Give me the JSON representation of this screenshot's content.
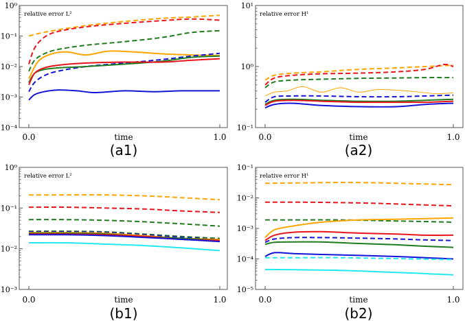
{
  "colors": {
    "orange": "#FFA500",
    "red": "#E8141A",
    "green": "#1E7B1E",
    "blue": "#1414D8",
    "cyan": "#22E8F0"
  },
  "chart_data": [
    {
      "type": "line",
      "panel_label": "(a1)",
      "title": "relative error L²",
      "xlabel": "time",
      "yscale": "log",
      "ylim_exp": [
        -4,
        0
      ],
      "ytick_labels": [
        "10⁻⁴",
        "10⁻³",
        "10⁻²",
        "10⁻¹",
        "10⁰"
      ],
      "xtick_labels": [
        "0.0",
        "1.0"
      ],
      "xlim": [
        0,
        1
      ],
      "series": [
        {
          "color": "orange",
          "dash": true,
          "width": 2,
          "x": [
            0,
            0.1,
            0.3,
            0.5,
            0.7,
            0.85,
            1.0
          ],
          "y": [
            0.1,
            0.14,
            0.22,
            0.3,
            0.38,
            0.42,
            0.48
          ]
        },
        {
          "color": "red",
          "dash": true,
          "width": 2,
          "x": [
            0,
            0.03,
            0.08,
            0.15,
            0.3,
            0.5,
            0.7,
            0.85,
            1.0
          ],
          "y": [
            0.012,
            0.04,
            0.09,
            0.14,
            0.2,
            0.26,
            0.32,
            0.36,
            0.33
          ]
        },
        {
          "color": "green",
          "dash": true,
          "width": 2,
          "x": [
            0,
            0.03,
            0.08,
            0.15,
            0.3,
            0.5,
            0.7,
            0.85,
            1.0
          ],
          "y": [
            0.007,
            0.016,
            0.026,
            0.036,
            0.05,
            0.065,
            0.09,
            0.13,
            0.15
          ]
        },
        {
          "color": "orange",
          "dash": false,
          "width": 2,
          "x": [
            0,
            0.05,
            0.12,
            0.2,
            0.3,
            0.42,
            0.55,
            0.7,
            0.85,
            1.0
          ],
          "y": [
            0.004,
            0.015,
            0.026,
            0.03,
            0.024,
            0.032,
            0.03,
            0.026,
            0.024,
            0.023
          ]
        },
        {
          "color": "blue",
          "dash": true,
          "width": 2,
          "x": [
            0,
            0.03,
            0.08,
            0.15,
            0.3,
            0.5,
            0.7,
            0.85,
            1.0
          ],
          "y": [
            0.0015,
            0.003,
            0.005,
            0.007,
            0.01,
            0.013,
            0.017,
            0.022,
            0.027
          ]
        },
        {
          "color": "green",
          "dash": false,
          "width": 2,
          "x": [
            0,
            0.03,
            0.08,
            0.15,
            0.3,
            0.5,
            0.7,
            0.85,
            1.0
          ],
          "y": [
            0.003,
            0.006,
            0.008,
            0.009,
            0.01,
            0.012,
            0.015,
            0.02,
            0.022
          ]
        },
        {
          "color": "red",
          "dash": false,
          "width": 2,
          "x": [
            0,
            0.03,
            0.08,
            0.15,
            0.3,
            0.5,
            0.7,
            0.85,
            1.0
          ],
          "y": [
            0.0025,
            0.006,
            0.009,
            0.011,
            0.013,
            0.014,
            0.014,
            0.016,
            0.018
          ]
        },
        {
          "color": "blue",
          "dash": false,
          "width": 2,
          "x": [
            0,
            0.03,
            0.08,
            0.15,
            0.25,
            0.35,
            0.5,
            0.65,
            0.8,
            1.0
          ],
          "y": [
            0.0008,
            0.0012,
            0.0015,
            0.0017,
            0.0016,
            0.0014,
            0.0016,
            0.0015,
            0.0016,
            0.0016
          ]
        }
      ]
    },
    {
      "type": "line",
      "panel_label": "(a2)",
      "title": "relative error H¹",
      "xlabel": "time",
      "yscale": "log",
      "ylim_exp": [
        -1,
        1
      ],
      "ytick_labels": [
        "10⁻¹",
        "10⁰",
        "10¹"
      ],
      "xtick_labels": [
        "0.0",
        "1.0"
      ],
      "xlim": [
        0,
        1
      ],
      "series": [
        {
          "color": "orange",
          "dash": true,
          "width": 2,
          "x": [
            0,
            0.05,
            0.15,
            0.3,
            0.5,
            0.7,
            0.85,
            1.0
          ],
          "y": [
            0.6,
            0.72,
            0.78,
            0.82,
            0.9,
            0.95,
            1.0,
            1.05
          ]
        },
        {
          "color": "red",
          "dash": true,
          "width": 2,
          "x": [
            0,
            0.05,
            0.15,
            0.3,
            0.5,
            0.7,
            0.85,
            0.95,
            1.0
          ],
          "y": [
            0.5,
            0.65,
            0.72,
            0.76,
            0.78,
            0.82,
            0.9,
            1.08,
            1.0
          ]
        },
        {
          "color": "green",
          "dash": true,
          "width": 2,
          "x": [
            0,
            0.05,
            0.15,
            0.3,
            0.5,
            0.7,
            0.85,
            1.0
          ],
          "y": [
            0.45,
            0.56,
            0.6,
            0.62,
            0.64,
            0.65,
            0.66,
            0.66
          ]
        },
        {
          "color": "orange",
          "dash": false,
          "width": 1,
          "x": [
            0,
            0.05,
            0.12,
            0.2,
            0.3,
            0.4,
            0.5,
            0.6,
            0.75,
            0.9,
            1.0
          ],
          "y": [
            0.33,
            0.38,
            0.4,
            0.47,
            0.38,
            0.45,
            0.38,
            0.42,
            0.4,
            0.36,
            0.37
          ]
        },
        {
          "color": "blue",
          "dash": true,
          "width": 2,
          "x": [
            0,
            0.05,
            0.15,
            0.3,
            0.5,
            0.7,
            0.85,
            1.0
          ],
          "y": [
            0.26,
            0.32,
            0.33,
            0.33,
            0.32,
            0.32,
            0.33,
            0.34
          ]
        },
        {
          "color": "green",
          "dash": false,
          "width": 2,
          "x": [
            0,
            0.05,
            0.15,
            0.3,
            0.5,
            0.7,
            0.85,
            1.0
          ],
          "y": [
            0.24,
            0.28,
            0.29,
            0.28,
            0.27,
            0.27,
            0.28,
            0.29
          ]
        },
        {
          "color": "red",
          "dash": false,
          "width": 2,
          "x": [
            0,
            0.05,
            0.15,
            0.3,
            0.5,
            0.7,
            0.85,
            1.0
          ],
          "y": [
            0.23,
            0.27,
            0.28,
            0.27,
            0.26,
            0.26,
            0.26,
            0.27
          ]
        },
        {
          "color": "blue",
          "dash": false,
          "width": 2,
          "x": [
            0,
            0.05,
            0.15,
            0.3,
            0.5,
            0.7,
            0.85,
            1.0
          ],
          "y": [
            0.21,
            0.24,
            0.25,
            0.23,
            0.22,
            0.22,
            0.24,
            0.25
          ]
        }
      ]
    },
    {
      "type": "line",
      "panel_label": "(b1)",
      "title": "relative error L²",
      "xlabel": "time",
      "yscale": "log",
      "ylim_exp": [
        -3,
        0
      ],
      "ytick_labels": [
        "10⁻³",
        "10⁻²",
        "10⁻¹",
        "10⁰"
      ],
      "xtick_labels": [
        "0.0",
        "1.0"
      ],
      "xlim": [
        0,
        1
      ],
      "series": [
        {
          "color": "orange",
          "dash": true,
          "width": 2,
          "x": [
            0,
            0.2,
            0.4,
            0.6,
            0.8,
            1.0
          ],
          "y": [
            0.21,
            0.21,
            0.21,
            0.2,
            0.18,
            0.16
          ]
        },
        {
          "color": "red",
          "dash": true,
          "width": 2,
          "x": [
            0,
            0.2,
            0.4,
            0.6,
            0.8,
            1.0
          ],
          "y": [
            0.105,
            0.105,
            0.1,
            0.095,
            0.085,
            0.078
          ]
        },
        {
          "color": "green",
          "dash": true,
          "width": 2,
          "x": [
            0,
            0.2,
            0.4,
            0.6,
            0.8,
            1.0
          ],
          "y": [
            0.052,
            0.052,
            0.05,
            0.046,
            0.041,
            0.036
          ]
        },
        {
          "color": "green",
          "dash": true,
          "width": 2,
          "x": [
            0,
            0.2,
            0.4,
            0.6,
            0.8,
            1.0
          ],
          "y": [
            0.027,
            0.027,
            0.026,
            0.023,
            0.02,
            0.018
          ]
        },
        {
          "color": "blue",
          "dash": true,
          "width": 2,
          "x": [
            0,
            0.2,
            0.4,
            0.6,
            0.8,
            1.0
          ],
          "y": [
            0.026,
            0.026,
            0.025,
            0.022,
            0.019,
            0.017
          ]
        },
        {
          "color": "orange",
          "dash": false,
          "width": 2,
          "x": [
            0,
            0.2,
            0.4,
            0.6,
            0.8,
            1.0
          ],
          "y": [
            0.025,
            0.025,
            0.024,
            0.021,
            0.018,
            0.017
          ]
        },
        {
          "color": "green",
          "dash": false,
          "width": 2,
          "x": [
            0,
            0.2,
            0.4,
            0.6,
            0.8,
            1.0
          ],
          "y": [
            0.024,
            0.024,
            0.023,
            0.02,
            0.018,
            0.016
          ]
        },
        {
          "color": "red",
          "dash": false,
          "width": 2,
          "x": [
            0,
            0.2,
            0.4,
            0.6,
            0.8,
            1.0
          ],
          "y": [
            0.023,
            0.023,
            0.022,
            0.02,
            0.017,
            0.016
          ]
        },
        {
          "color": "blue",
          "dash": false,
          "width": 2,
          "x": [
            0,
            0.2,
            0.4,
            0.6,
            0.8,
            1.0
          ],
          "y": [
            0.022,
            0.022,
            0.021,
            0.019,
            0.017,
            0.015
          ]
        },
        {
          "color": "cyan",
          "dash": false,
          "width": 2,
          "x": [
            0,
            0.2,
            0.4,
            0.6,
            0.8,
            1.0
          ],
          "y": [
            0.014,
            0.014,
            0.013,
            0.012,
            0.0105,
            0.009
          ]
        }
      ]
    },
    {
      "type": "line",
      "panel_label": "(b2)",
      "title": "relative error H¹",
      "xlabel": "time",
      "yscale": "log",
      "ylim_exp": [
        -5,
        -1
      ],
      "ytick_labels": [
        "10⁻⁵",
        "10⁻⁴",
        "10⁻³",
        "10⁻²",
        "10⁻¹"
      ],
      "xtick_labels": [
        "0.0",
        "1.0"
      ],
      "xlim": [
        0,
        1
      ],
      "series": [
        {
          "color": "orange",
          "dash": true,
          "width": 2,
          "x": [
            0,
            0.2,
            0.4,
            0.6,
            0.8,
            1.0
          ],
          "y": [
            0.03,
            0.031,
            0.032,
            0.031,
            0.029,
            0.027
          ]
        },
        {
          "color": "red",
          "dash": true,
          "width": 2,
          "x": [
            0,
            0.2,
            0.4,
            0.6,
            0.8,
            1.0
          ],
          "y": [
            0.0072,
            0.0072,
            0.007,
            0.0066,
            0.006,
            0.0055
          ]
        },
        {
          "color": "green",
          "dash": true,
          "width": 2,
          "x": [
            0,
            0.2,
            0.4,
            0.6,
            0.8,
            1.0
          ],
          "y": [
            0.0019,
            0.0019,
            0.0019,
            0.0018,
            0.0017,
            0.0016
          ]
        },
        {
          "color": "orange",
          "dash": false,
          "width": 2,
          "x": [
            0,
            0.05,
            0.15,
            0.3,
            0.5,
            0.7,
            0.85,
            1.0
          ],
          "y": [
            0.0005,
            0.0009,
            0.0012,
            0.0016,
            0.0019,
            0.002,
            0.0021,
            0.0022
          ]
        },
        {
          "color": "red",
          "dash": false,
          "width": 2,
          "x": [
            0,
            0.05,
            0.15,
            0.3,
            0.5,
            0.7,
            0.85,
            1.0
          ],
          "y": [
            0.0004,
            0.0006,
            0.00075,
            0.00078,
            0.0007,
            0.00065,
            0.0006,
            0.0006
          ]
        },
        {
          "color": "blue",
          "dash": true,
          "width": 2,
          "x": [
            0,
            0.05,
            0.15,
            0.3,
            0.5,
            0.7,
            0.85,
            1.0
          ],
          "y": [
            0.00035,
            0.00045,
            0.0005,
            0.0005,
            0.00048,
            0.00045,
            0.00042,
            0.0004
          ]
        },
        {
          "color": "green",
          "dash": false,
          "width": 2,
          "x": [
            0,
            0.05,
            0.15,
            0.3,
            0.5,
            0.7,
            0.85,
            1.0
          ],
          "y": [
            0.0003,
            0.00035,
            0.00036,
            0.00036,
            0.00032,
            0.00029,
            0.00026,
            0.00024
          ]
        },
        {
          "color": "blue",
          "dash": false,
          "width": 2,
          "x": [
            0,
            0.05,
            0.15,
            0.3,
            0.5,
            0.7,
            0.85,
            1.0
          ],
          "y": [
            0.00012,
            0.00016,
            0.00015,
            0.00014,
            0.00013,
            0.00012,
            0.00011,
            0.0001
          ]
        },
        {
          "color": "cyan",
          "dash": true,
          "width": 2,
          "x": [
            0,
            0.2,
            0.4,
            0.6,
            0.8,
            1.0
          ],
          "y": [
            0.00011,
            0.00011,
            0.00011,
            0.000105,
            0.0001,
            9.5e-05
          ]
        },
        {
          "color": "cyan",
          "dash": false,
          "width": 2,
          "x": [
            0,
            0.2,
            0.4,
            0.6,
            0.8,
            1.0
          ],
          "y": [
            4.5e-05,
            4.4e-05,
            4.2e-05,
            3.8e-05,
            3.4e-05,
            3e-05
          ]
        }
      ]
    }
  ]
}
